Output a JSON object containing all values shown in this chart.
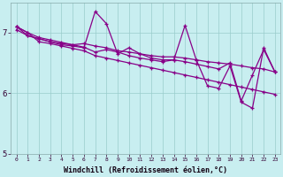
{
  "xlabel": "Windchill (Refroidissement éolien,°C)",
  "background_color": "#c8eef0",
  "line_color": "#880088",
  "grid_color": "#99cccc",
  "xlim": [
    -0.5,
    23.5
  ],
  "ylim": [
    5.0,
    7.5
  ],
  "yticks": [
    5,
    6,
    7
  ],
  "xticks": [
    0,
    1,
    2,
    3,
    4,
    5,
    6,
    7,
    8,
    9,
    10,
    11,
    12,
    13,
    14,
    15,
    16,
    17,
    18,
    19,
    20,
    21,
    22,
    23
  ],
  "series": [
    [
      7.1,
      7.0,
      6.85,
      6.82,
      6.78,
      6.74,
      6.7,
      6.62,
      6.58,
      6.54,
      6.5,
      6.46,
      6.42,
      6.38,
      6.34,
      6.3,
      6.26,
      6.22,
      6.18,
      6.14,
      6.1,
      6.06,
      6.02,
      5.98
    ],
    [
      7.05,
      6.95,
      6.9,
      6.85,
      6.82,
      6.8,
      6.82,
      6.78,
      6.75,
      6.7,
      6.68,
      6.65,
      6.62,
      6.6,
      6.6,
      6.58,
      6.55,
      6.52,
      6.5,
      6.48,
      6.45,
      6.42,
      6.4,
      6.35
    ],
    [
      7.1,
      6.95,
      6.9,
      6.85,
      6.8,
      6.78,
      6.75,
      7.35,
      7.15,
      6.65,
      6.75,
      6.65,
      6.58,
      6.55,
      6.55,
      7.12,
      6.55,
      6.12,
      6.08,
      6.45,
      5.85,
      5.75,
      6.75,
      6.35
    ],
    [
      7.1,
      7.0,
      6.92,
      6.88,
      6.84,
      6.8,
      6.76,
      6.68,
      6.72,
      6.68,
      6.62,
      6.58,
      6.55,
      6.52,
      6.55,
      6.52,
      6.48,
      6.44,
      6.4,
      6.5,
      5.87,
      6.3,
      6.72,
      6.35
    ]
  ]
}
